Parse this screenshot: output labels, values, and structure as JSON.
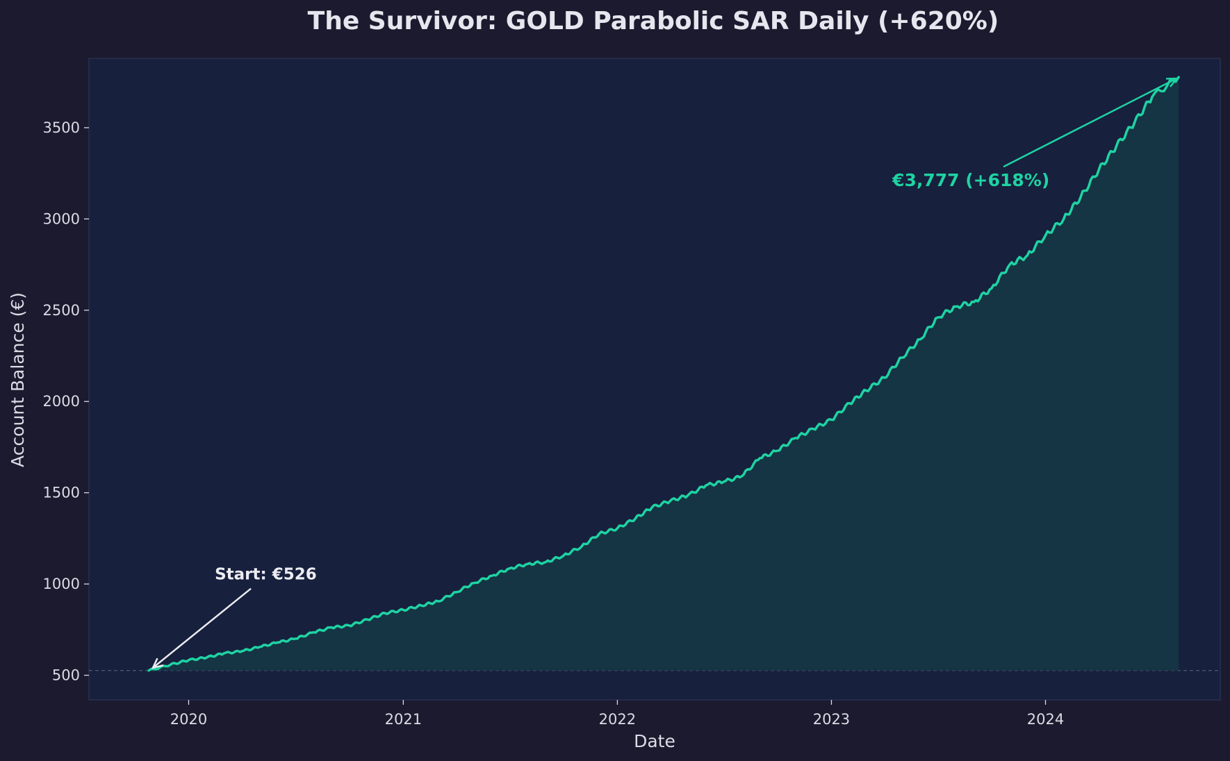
{
  "chart_data": {
    "type": "area",
    "title": "The Survivor: GOLD Parabolic SAR Daily (+620%)",
    "xlabel": "Date",
    "ylabel": "Account Balance (€)",
    "x_ticks": [
      "2020",
      "2021",
      "2022",
      "2023",
      "2024"
    ],
    "y_ticks": [
      500,
      1000,
      1500,
      2000,
      2500,
      3000,
      3500
    ],
    "xlim": [
      "2019-07-15",
      "2024-10-25"
    ],
    "ylim": [
      365,
      3880
    ],
    "grid": false,
    "baseline": 526,
    "series": [
      {
        "x": [
          "2019-10-25",
          "2019-12-01",
          "2020-01-01",
          "2020-02-01",
          "2020-03-01",
          "2020-04-01",
          "2020-05-01",
          "2020-06-01",
          "2020-07-01",
          "2020-08-01",
          "2020-09-01",
          "2020-10-01",
          "2020-11-01",
          "2020-12-01",
          "2021-01-01",
          "2021-02-01",
          "2021-03-01",
          "2021-04-01",
          "2021-05-01",
          "2021-06-01",
          "2021-07-01",
          "2021-08-01",
          "2021-09-01",
          "2021-10-01",
          "2021-11-01",
          "2021-12-01",
          "2022-01-01",
          "2022-02-01",
          "2022-03-01",
          "2022-04-01",
          "2022-05-01",
          "2022-06-01",
          "2022-07-01",
          "2022-08-01",
          "2022-09-01",
          "2022-10-01",
          "2022-11-01",
          "2022-12-01",
          "2023-01-01",
          "2023-02-01",
          "2023-03-01",
          "2023-04-01",
          "2023-05-01",
          "2023-06-01",
          "2023-07-01",
          "2023-08-01",
          "2023-09-01",
          "2023-10-01",
          "2023-11-01",
          "2023-12-01",
          "2024-01-01",
          "2024-02-01",
          "2024-03-01",
          "2024-04-01",
          "2024-05-01",
          "2024-06-01",
          "2024-07-01",
          "2024-08-15"
        ],
        "values": [
          526,
          558,
          583,
          598,
          620,
          632,
          655,
          680,
          700,
          735,
          762,
          772,
          805,
          840,
          858,
          882,
          905,
          955,
          1005,
          1045,
          1085,
          1110,
          1120,
          1155,
          1205,
          1275,
          1305,
          1360,
          1420,
          1455,
          1485,
          1540,
          1560,
          1590,
          1690,
          1730,
          1800,
          1850,
          1900,
          1990,
          2060,
          2130,
          2240,
          2340,
          2460,
          2520,
          2545,
          2620,
          2750,
          2800,
          2910,
          3000,
          3120,
          3270,
          3400,
          3530,
          3670,
          3777
        ]
      }
    ],
    "annotations": [
      {
        "text": "Start: €526",
        "x": "2019-10-25",
        "y": 526
      },
      {
        "text": "€3,777 (+618%)",
        "x": "2024-08-15",
        "y": 3777
      }
    ],
    "colors": {
      "figure_bg": "#1b1a2e",
      "plot_bg": "#17203d",
      "line": "#1fd3a3",
      "fill": "#153645",
      "baseline": "#4b5670",
      "start_annotation": "#ececf2",
      "end_annotation": "#1fd3a3",
      "frame": "#2a3150"
    }
  }
}
